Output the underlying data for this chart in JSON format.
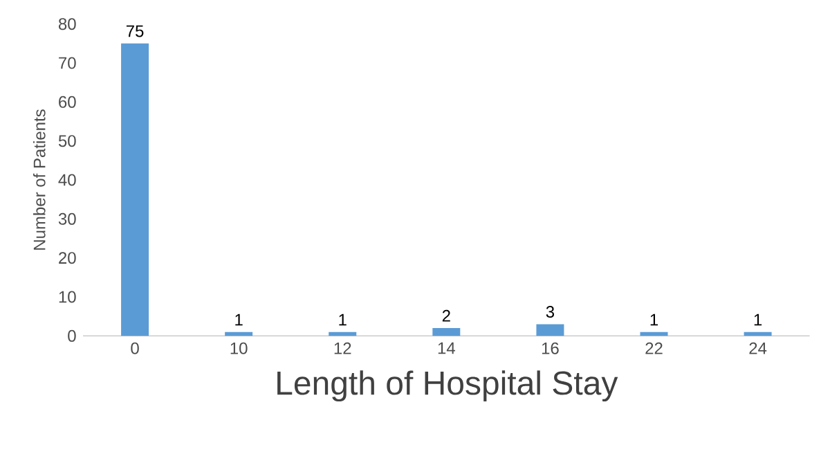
{
  "chart_data": {
    "type": "bar",
    "xlabel": "Length of Hospital Stay",
    "ylabel": "Number of Patients",
    "categories": [
      "0",
      "10",
      "12",
      "14",
      "16",
      "22",
      "24"
    ],
    "values": [
      75,
      1,
      1,
      2,
      3,
      1,
      1
    ],
    "color": "#5b9bd5",
    "ylim": [
      0,
      80
    ],
    "yticks": [
      0,
      10,
      20,
      30,
      40,
      50,
      60,
      70,
      80
    ],
    "data_labels": true,
    "grid": false
  }
}
